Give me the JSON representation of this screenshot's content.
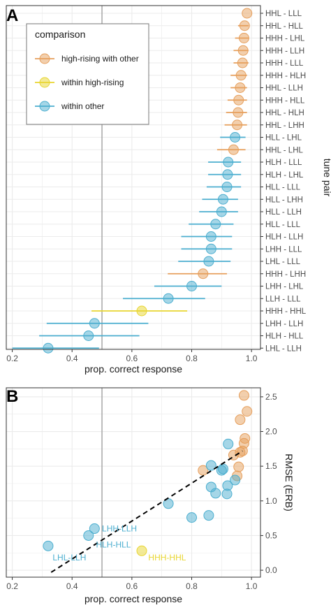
{
  "colors": {
    "high_rising_with_other": "#E69F5C",
    "within_high_rising": "#E8D530",
    "within_other": "#4BAECF",
    "grid": "#ebebeb",
    "refline": "#a6a6a6",
    "border": "#333333"
  },
  "legend": {
    "title": "comparison",
    "entries": [
      {
        "key": "high_rising_with_other",
        "label": "high-rising with other"
      },
      {
        "key": "within_high_rising",
        "label": "within high-rising"
      },
      {
        "key": "within_other",
        "label": "within other"
      }
    ],
    "placement": "top-left"
  },
  "chart_data": [
    {
      "panel": "A",
      "type": "scatter",
      "subtype": "dot-with-error-bars",
      "xlabel": "prop. correct response",
      "ylabel": "tune pair",
      "xlim": [
        0.18,
        1.03
      ],
      "xticks": [
        "0.2",
        "0.4",
        "0.6",
        "0.8",
        "1.0"
      ],
      "xtick_values": [
        0.2,
        0.4,
        0.6,
        0.8,
        1.0
      ],
      "reference_x": 0.5,
      "grid": true,
      "legend": "top-left",
      "points": [
        {
          "label": "HHL - LLL",
          "x": 0.985,
          "lo": 0.985,
          "hi": 0.985,
          "group": "high_rising_with_other"
        },
        {
          "label": "HHL - HLL",
          "x": 0.977,
          "lo": 0.955,
          "hi": 0.99,
          "group": "high_rising_with_other"
        },
        {
          "label": "HHH - LHL",
          "x": 0.975,
          "lo": 0.945,
          "hi": 0.99,
          "group": "high_rising_with_other"
        },
        {
          "label": "HHH - LLH",
          "x": 0.972,
          "lo": 0.94,
          "hi": 0.99,
          "group": "high_rising_with_other"
        },
        {
          "label": "HHH - LLL",
          "x": 0.97,
          "lo": 0.94,
          "hi": 0.99,
          "group": "high_rising_with_other"
        },
        {
          "label": "HHH - HLH",
          "x": 0.965,
          "lo": 0.93,
          "hi": 0.985,
          "group": "high_rising_with_other"
        },
        {
          "label": "HHL - LLH",
          "x": 0.962,
          "lo": 0.93,
          "hi": 0.985,
          "group": "high_rising_with_other"
        },
        {
          "label": "HHH - HLL",
          "x": 0.957,
          "lo": 0.92,
          "hi": 0.985,
          "group": "high_rising_with_other"
        },
        {
          "label": "HHL - HLH",
          "x": 0.955,
          "lo": 0.915,
          "hi": 0.985,
          "group": "high_rising_with_other"
        },
        {
          "label": "HHL - LHH",
          "x": 0.952,
          "lo": 0.91,
          "hi": 0.985,
          "group": "high_rising_with_other"
        },
        {
          "label": "HLL - LHL",
          "x": 0.945,
          "lo": 0.895,
          "hi": 0.98,
          "group": "within_other"
        },
        {
          "label": "HHL - LHL",
          "x": 0.94,
          "lo": 0.885,
          "hi": 0.98,
          "group": "high_rising_with_other"
        },
        {
          "label": "HLH - LLL",
          "x": 0.922,
          "lo": 0.855,
          "hi": 0.965,
          "group": "within_other"
        },
        {
          "label": "HLH - LHL",
          "x": 0.92,
          "lo": 0.855,
          "hi": 0.965,
          "group": "within_other"
        },
        {
          "label": "HLL - LLL",
          "x": 0.918,
          "lo": 0.85,
          "hi": 0.965,
          "group": "within_other"
        },
        {
          "label": "HLL - LHH",
          "x": 0.905,
          "lo": 0.835,
          "hi": 0.955,
          "group": "within_other"
        },
        {
          "label": "HLL - LLH",
          "x": 0.9,
          "lo": 0.825,
          "hi": 0.955,
          "group": "within_other"
        },
        {
          "label": "HLL - LLL",
          "x": 0.88,
          "lo": 0.79,
          "hi": 0.94,
          "group": "within_other"
        },
        {
          "label": "HLH - LLH",
          "x": 0.865,
          "lo": 0.765,
          "hi": 0.935,
          "group": "within_other"
        },
        {
          "label": "LHH - LLL",
          "x": 0.865,
          "lo": 0.765,
          "hi": 0.935,
          "group": "within_other"
        },
        {
          "label": "LHL - LLL",
          "x": 0.857,
          "lo": 0.755,
          "hi": 0.93,
          "group": "within_other"
        },
        {
          "label": "HHH - LHH",
          "x": 0.838,
          "lo": 0.72,
          "hi": 0.918,
          "group": "high_rising_with_other"
        },
        {
          "label": "LHH - LHL",
          "x": 0.8,
          "lo": 0.675,
          "hi": 0.9,
          "group": "within_other"
        },
        {
          "label": "LLH - LLL",
          "x": 0.722,
          "lo": 0.57,
          "hi": 0.845,
          "group": "within_other"
        },
        {
          "label": "HHH - HHL",
          "x": 0.633,
          "lo": 0.465,
          "hi": 0.785,
          "group": "within_high_rising"
        },
        {
          "label": "LHH - LLH",
          "x": 0.475,
          "lo": 0.315,
          "hi": 0.655,
          "group": "within_other"
        },
        {
          "label": "HLH - HLL",
          "x": 0.455,
          "lo": 0.29,
          "hi": 0.625,
          "group": "within_other"
        },
        {
          "label": "LHL - LLH",
          "x": 0.32,
          "lo": 0.2,
          "hi": 0.49,
          "group": "within_other"
        }
      ]
    },
    {
      "panel": "B",
      "type": "scatter",
      "xlabel": "prop. correct response",
      "ylabel": "RMSE (ERB)",
      "xlim": [
        0.18,
        1.03
      ],
      "ylim": [
        -0.1,
        2.63
      ],
      "xticks": [
        "0.2",
        "0.4",
        "0.6",
        "0.8",
        "1.0"
      ],
      "xtick_values": [
        0.2,
        0.4,
        0.6,
        0.8,
        1.0
      ],
      "yticks": [
        "0.0",
        "0.5",
        "1.0",
        "1.5",
        "2.0",
        "2.5"
      ],
      "ytick_values": [
        0.0,
        0.5,
        1.0,
        1.5,
        2.0,
        2.5
      ],
      "reference_x": 0.5,
      "grid": true,
      "trend_line": {
        "x": [
          0.33,
          0.97
        ],
        "y": [
          -0.03,
          1.72
        ],
        "style": "dashed"
      },
      "points": [
        {
          "x": 0.975,
          "y": 2.52,
          "group": "high_rising_with_other"
        },
        {
          "x": 0.985,
          "y": 2.29,
          "group": "high_rising_with_other"
        },
        {
          "x": 0.962,
          "y": 2.17,
          "group": "high_rising_with_other"
        },
        {
          "x": 0.978,
          "y": 1.9,
          "group": "high_rising_with_other"
        },
        {
          "x": 0.975,
          "y": 1.83,
          "group": "high_rising_with_other"
        },
        {
          "x": 0.97,
          "y": 1.72,
          "group": "high_rising_with_other"
        },
        {
          "x": 0.962,
          "y": 1.7,
          "group": "high_rising_with_other"
        },
        {
          "x": 0.94,
          "y": 1.66,
          "group": "high_rising_with_other"
        },
        {
          "x": 0.957,
          "y": 1.49,
          "group": "high_rising_with_other"
        },
        {
          "x": 0.952,
          "y": 1.36,
          "group": "high_rising_with_other"
        },
        {
          "x": 0.838,
          "y": 1.44,
          "group": "high_rising_with_other"
        },
        {
          "x": 0.922,
          "y": 1.82,
          "group": "within_other"
        },
        {
          "x": 0.865,
          "y": 1.51,
          "group": "within_other"
        },
        {
          "x": 0.905,
          "y": 1.46,
          "group": "within_other"
        },
        {
          "x": 0.9,
          "y": 1.44,
          "group": "within_other"
        },
        {
          "x": 0.945,
          "y": 1.3,
          "group": "within_other"
        },
        {
          "x": 0.865,
          "y": 1.2,
          "group": "within_other"
        },
        {
          "x": 0.92,
          "y": 1.22,
          "group": "within_other"
        },
        {
          "x": 0.88,
          "y": 1.11,
          "group": "within_other"
        },
        {
          "x": 0.918,
          "y": 1.1,
          "group": "within_other"
        },
        {
          "x": 0.722,
          "y": 0.96,
          "group": "within_other"
        },
        {
          "x": 0.8,
          "y": 0.76,
          "group": "within_other"
        },
        {
          "x": 0.857,
          "y": 0.79,
          "group": "within_other"
        },
        {
          "x": 0.633,
          "y": 0.28,
          "group": "within_high_rising"
        },
        {
          "x": 0.475,
          "y": 0.6,
          "group": "within_other"
        },
        {
          "x": 0.455,
          "y": 0.5,
          "group": "within_other"
        },
        {
          "x": 0.32,
          "y": 0.35,
          "group": "within_other"
        }
      ],
      "annotations": [
        {
          "text": "LHH-LLH",
          "x": 0.5,
          "y": 0.6,
          "group": "within_other"
        },
        {
          "text": "HLH-HLL",
          "x": 0.48,
          "y": 0.37,
          "group": "within_other"
        },
        {
          "text": "LHL-LLH",
          "x": 0.335,
          "y": 0.18,
          "group": "within_other"
        },
        {
          "text": "HHH-HHL",
          "x": 0.655,
          "y": 0.18,
          "group": "within_high_rising"
        }
      ]
    }
  ],
  "panel_tags": [
    "A",
    "B"
  ]
}
